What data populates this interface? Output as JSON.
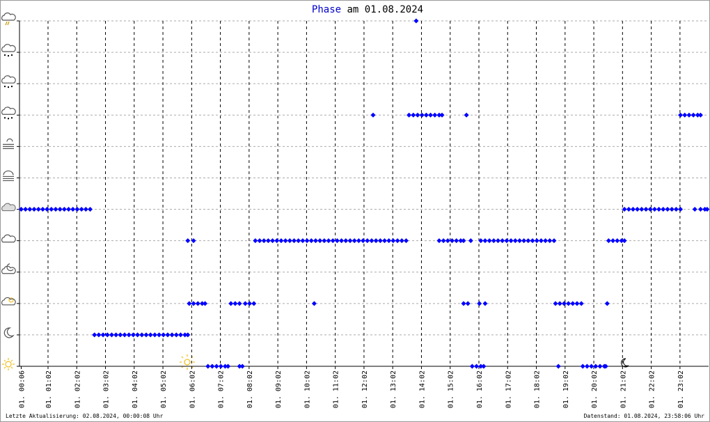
{
  "chart_data": {
    "type": "scatter",
    "title_name": "Phase",
    "title_rest": "am 01.08.2024",
    "footer_left": "Letzte Aktualisierung: 02.08.2024, 00:00:08 Uhr",
    "footer_right": "Datenstand: 01.08.2024, 23:58:06 Uhr",
    "color": "#0000ff",
    "title_color": "#0000cc",
    "xlim": [
      0.04,
      24.03
    ],
    "ylim": [
      0,
      11
    ],
    "yticks": [
      0,
      1,
      2,
      3,
      4,
      5,
      6,
      7,
      8,
      9,
      10,
      11
    ],
    "xticks": [
      {
        "value": 0.1,
        "label": "01. 00:06"
      },
      {
        "value": 1.0333,
        "label": "01. 01:02"
      },
      {
        "value": 2.0333,
        "label": "01. 02:02"
      },
      {
        "value": 3.0333,
        "label": "01. 03:02"
      },
      {
        "value": 4.0333,
        "label": "01. 04:02"
      },
      {
        "value": 5.0333,
        "label": "01. 05:02"
      },
      {
        "value": 6.0333,
        "label": "01. 06:02"
      },
      {
        "value": 7.0333,
        "label": "01. 07:02"
      },
      {
        "value": 8.0333,
        "label": "01. 08:02"
      },
      {
        "value": 9.0333,
        "label": "01. 09:02"
      },
      {
        "value": 10.0333,
        "label": "01. 10:02"
      },
      {
        "value": 11.0333,
        "label": "01. 11:02"
      },
      {
        "value": 12.0333,
        "label": "01. 12:02"
      },
      {
        "value": 13.0333,
        "label": "01. 13:02"
      },
      {
        "value": 14.0333,
        "label": "01. 14:02"
      },
      {
        "value": 15.0333,
        "label": "01. 15:02"
      },
      {
        "value": 16.0333,
        "label": "01. 16:02"
      },
      {
        "value": 17.0333,
        "label": "01. 17:02"
      },
      {
        "value": 18.0333,
        "label": "01. 18:02"
      },
      {
        "value": 19.0333,
        "label": "01. 19:02"
      },
      {
        "value": 20.0333,
        "label": "01. 20:02"
      },
      {
        "value": 21.0333,
        "label": "01. 21:02"
      },
      {
        "value": 22.0333,
        "label": "01. 22:02"
      },
      {
        "value": 23.0333,
        "label": "01. 23:02"
      }
    ],
    "x": [
      0.1,
      0.25,
      0.4,
      0.55,
      0.7,
      0.85,
      1.0,
      1.15,
      1.3,
      1.45,
      1.6,
      1.75,
      1.9,
      2.05,
      2.2,
      2.35,
      2.5,
      2.65,
      2.8,
      2.95,
      3.1,
      3.25,
      3.4,
      3.55,
      3.7,
      3.85,
      4.0,
      4.15,
      4.3,
      4.45,
      4.6,
      4.75,
      4.9,
      5.05,
      5.2,
      5.35,
      5.5,
      5.65,
      5.8,
      5.9,
      5.9,
      6.1,
      5.95,
      6.1,
      6.25,
      6.4,
      6.5,
      6.6,
      6.75,
      6.9,
      7.05,
      7.2,
      7.3,
      7.4,
      7.55,
      7.7,
      7.7,
      7.8,
      7.9,
      8.05,
      8.2,
      8.25,
      8.4,
      8.55,
      8.7,
      8.85,
      9.0,
      9.15,
      9.3,
      9.45,
      9.6,
      9.75,
      9.9,
      10.05,
      10.2,
      10.35,
      10.5,
      10.65,
      10.8,
      10.95,
      11.1,
      11.25,
      11.4,
      11.55,
      11.7,
      11.85,
      12.0,
      12.15,
      12.3,
      12.45,
      12.6,
      12.75,
      12.9,
      13.05,
      13.2,
      13.35,
      13.5,
      10.3,
      12.35,
      13.85,
      13.6,
      13.75,
      13.9,
      14.05,
      14.2,
      14.35,
      14.5,
      14.65,
      14.75,
      14.65,
      14.8,
      14.95,
      15.1,
      15.25,
      15.4,
      15.5,
      15.5,
      15.65,
      15.6,
      15.75,
      15.8,
      15.95,
      16.1,
      16.2,
      16.05,
      16.25,
      16.1,
      16.25,
      16.4,
      16.55,
      16.7,
      16.85,
      17.0,
      17.15,
      17.3,
      17.45,
      17.6,
      17.75,
      17.9,
      18.05,
      18.2,
      18.35,
      18.5,
      18.65,
      18.8,
      18.7,
      18.85,
      19.0,
      19.15,
      19.3,
      19.45,
      19.6,
      19.65,
      19.8,
      19.95,
      20.1,
      20.25,
      20.4,
      20.45,
      20.5,
      20.55,
      20.7,
      20.85,
      21.0,
      21.1,
      21.1,
      21.25,
      21.4,
      21.55,
      21.7,
      21.85,
      22.0,
      22.15,
      22.3,
      22.45,
      22.6,
      22.75,
      22.9,
      23.05,
      23.05,
      23.2,
      23.35,
      23.5,
      23.65,
      23.75,
      23.55,
      23.75,
      23.9,
      23.98
    ],
    "values": [
      5,
      5,
      5,
      5,
      5,
      5,
      5,
      5,
      5,
      5,
      5,
      5,
      5,
      5,
      5,
      5,
      5,
      1,
      1,
      1,
      1,
      1,
      1,
      1,
      1,
      1,
      1,
      1,
      1,
      1,
      1,
      1,
      1,
      1,
      1,
      1,
      1,
      1,
      1,
      1,
      4,
      4,
      2,
      2,
      2,
      2,
      2,
      0,
      0,
      0,
      0,
      0,
      0,
      2,
      2,
      2,
      0,
      0,
      2,
      2,
      2,
      4,
      4,
      4,
      4,
      4,
      4,
      4,
      4,
      4,
      4,
      4,
      4,
      4,
      4,
      4,
      4,
      4,
      4,
      4,
      4,
      4,
      4,
      4,
      4,
      4,
      4,
      4,
      4,
      4,
      4,
      4,
      4,
      4,
      4,
      4,
      4,
      2,
      8,
      11,
      8,
      8,
      8,
      8,
      8,
      8,
      8,
      8,
      8,
      4,
      4,
      4,
      4,
      4,
      4,
      4,
      2,
      2,
      8,
      4,
      0,
      0,
      0,
      0,
      2,
      2,
      4,
      4,
      4,
      4,
      4,
      4,
      4,
      4,
      4,
      4,
      4,
      4,
      4,
      4,
      4,
      4,
      4,
      4,
      0,
      2,
      2,
      2,
      2,
      2,
      2,
      2,
      0,
      0,
      0,
      0,
      0,
      0,
      0,
      2,
      4,
      4,
      4,
      4,
      4,
      5,
      5,
      5,
      5,
      5,
      5,
      5,
      5,
      5,
      5,
      5,
      5,
      5,
      5,
      8,
      8,
      8,
      8,
      8,
      8,
      5,
      5,
      5,
      5
    ]
  }
}
